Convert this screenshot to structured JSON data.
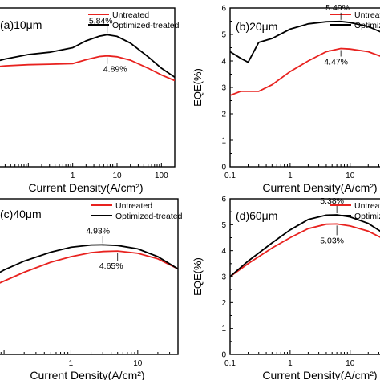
{
  "chart_data": [
    {
      "type": "line",
      "panel_label": "(a)10μm",
      "xlabel": "Current Density(A/cm²)",
      "ylabel": "",
      "xscale": "log",
      "xlim": [
        0.01,
        200
      ],
      "ylim": [
        0,
        7
      ],
      "x_ticks": [
        "1",
        "10",
        "100"
      ],
      "legend": "top-right",
      "series": [
        {
          "name": "Untreated",
          "color": "#e8221f",
          "x": [
            0.01,
            0.03,
            0.1,
            0.3,
            1,
            2,
            4,
            6,
            10,
            20,
            50,
            100,
            200
          ],
          "y": [
            4.35,
            4.45,
            4.5,
            4.52,
            4.55,
            4.72,
            4.86,
            4.89,
            4.85,
            4.7,
            4.35,
            4.05,
            3.8
          ]
        },
        {
          "name": "Optimized-treated",
          "color": "#000000",
          "x": [
            0.01,
            0.03,
            0.1,
            0.3,
            1,
            2,
            4,
            6,
            10,
            20,
            50,
            100,
            200
          ],
          "y": [
            4.5,
            4.75,
            4.95,
            5.05,
            5.25,
            5.55,
            5.76,
            5.82,
            5.75,
            5.45,
            4.85,
            4.35,
            3.95
          ]
        }
      ],
      "annotations": [
        {
          "text": "5.84%",
          "series": "Optimized-treated"
        },
        {
          "text": "4.89%",
          "series": "Untreated"
        }
      ]
    },
    {
      "type": "line",
      "panel_label": "(b)20μm",
      "xlabel": "Current Density(A/cm²)",
      "ylabel": "EQE(%)",
      "xscale": "log",
      "xlim": [
        0.1,
        60
      ],
      "ylim": [
        0,
        6
      ],
      "y_ticks": [
        "0",
        "1",
        "2",
        "3",
        "4",
        "5",
        "6"
      ],
      "x_ticks": [
        "0.1",
        "1",
        "10"
      ],
      "legend": "top-right",
      "series": [
        {
          "name": "Untreated",
          "color": "#e8221f",
          "x": [
            0.1,
            0.15,
            0.2,
            0.3,
            0.5,
            1,
            2,
            4,
            7,
            10,
            20,
            40,
            60
          ],
          "y": [
            2.7,
            2.85,
            2.85,
            2.85,
            3.1,
            3.6,
            4.0,
            4.35,
            4.47,
            4.45,
            4.35,
            4.1,
            3.85
          ]
        },
        {
          "name": "Optimized-treated",
          "color": "#000000",
          "x": [
            0.1,
            0.15,
            0.2,
            0.3,
            0.5,
            1,
            2,
            4,
            7,
            10,
            20,
            40,
            60
          ],
          "y": [
            4.35,
            4.1,
            3.95,
            4.7,
            4.85,
            5.2,
            5.4,
            5.48,
            5.49,
            5.45,
            5.3,
            5.0,
            4.7
          ]
        }
      ],
      "annotations": [
        {
          "text": "5.49%",
          "series": "Optimized-treated"
        },
        {
          "text": "4.47%",
          "series": "Untreated"
        }
      ]
    },
    {
      "type": "line",
      "panel_label": "(c)40μm",
      "xlabel": "Current Density(A/cm²)",
      "ylabel": "",
      "xscale": "log",
      "xlim": [
        0.05,
        40
      ],
      "ylim": [
        0,
        7
      ],
      "x_ticks": [
        "1",
        "10"
      ],
      "legend": "top-right",
      "series": [
        {
          "name": "Untreated",
          "color": "#e8221f",
          "x": [
            0.05,
            0.1,
            0.2,
            0.5,
            1,
            2,
            3,
            5,
            10,
            20,
            40
          ],
          "y": [
            2.9,
            3.3,
            3.7,
            4.15,
            4.4,
            4.58,
            4.63,
            4.65,
            4.55,
            4.3,
            3.85
          ]
        },
        {
          "name": "Optimized-treated",
          "color": "#000000",
          "x": [
            0.05,
            0.1,
            0.2,
            0.5,
            1,
            2,
            3,
            5,
            10,
            20,
            40
          ],
          "y": [
            3.3,
            3.8,
            4.2,
            4.6,
            4.82,
            4.92,
            4.93,
            4.9,
            4.75,
            4.4,
            3.85
          ]
        }
      ],
      "annotations": [
        {
          "text": "4.93%",
          "series": "Optimized-treated"
        },
        {
          "text": "4.65%",
          "series": "Untreated"
        }
      ]
    },
    {
      "type": "line",
      "panel_label": "(d)60μm",
      "xlabel": "Current Density(A/cm²)",
      "ylabel": "EQE(%)",
      "xscale": "log",
      "xlim": [
        0.1,
        60
      ],
      "ylim": [
        0,
        6
      ],
      "y_ticks": [
        "0",
        "1",
        "2",
        "3",
        "4",
        "5",
        "6"
      ],
      "x_ticks": [
        "0.1",
        "1",
        "10"
      ],
      "legend": "top-right",
      "series": [
        {
          "name": "Untreated",
          "color": "#e8221f",
          "x": [
            0.1,
            0.2,
            0.5,
            1,
            2,
            4,
            6,
            10,
            20,
            40,
            60
          ],
          "y": [
            3.0,
            3.5,
            4.1,
            4.5,
            4.85,
            5.02,
            5.03,
            4.95,
            4.75,
            4.4,
            4.1
          ]
        },
        {
          "name": "Optimized-treated",
          "color": "#000000",
          "x": [
            0.1,
            0.2,
            0.5,
            1,
            2,
            4,
            6,
            10,
            20,
            40,
            60
          ],
          "y": [
            3.0,
            3.6,
            4.3,
            4.8,
            5.2,
            5.37,
            5.38,
            5.3,
            5.05,
            4.6,
            4.2
          ]
        }
      ],
      "annotations": [
        {
          "text": "5.38%",
          "series": "Optimized-treated"
        },
        {
          "text": "5.03%",
          "series": "Untreated"
        }
      ]
    }
  ]
}
